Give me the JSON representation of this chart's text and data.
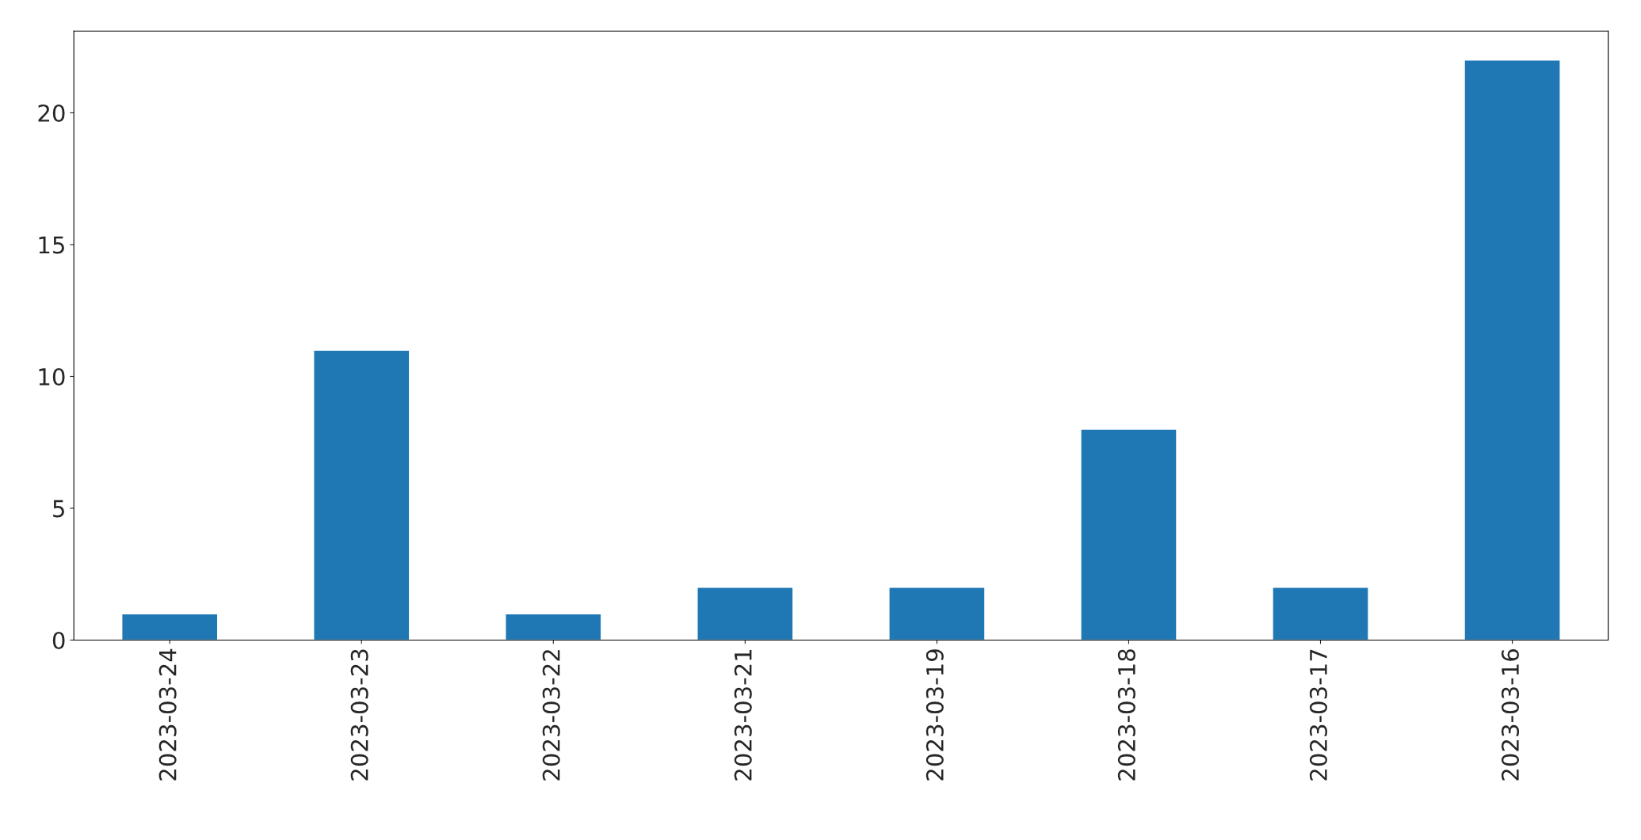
{
  "chart_data": {
    "type": "bar",
    "categories": [
      "2023-03-24",
      "2023-03-23",
      "2023-03-22",
      "2023-03-21",
      "2023-03-19",
      "2023-03-18",
      "2023-03-17",
      "2023-03-16"
    ],
    "values": [
      1,
      11,
      1,
      2,
      2,
      8,
      2,
      22
    ],
    "color": "#1f77b4",
    "ylim": [
      0,
      23.1
    ],
    "yticks": [
      0,
      5,
      10,
      15,
      20
    ],
    "grid": false,
    "legend": false
  }
}
